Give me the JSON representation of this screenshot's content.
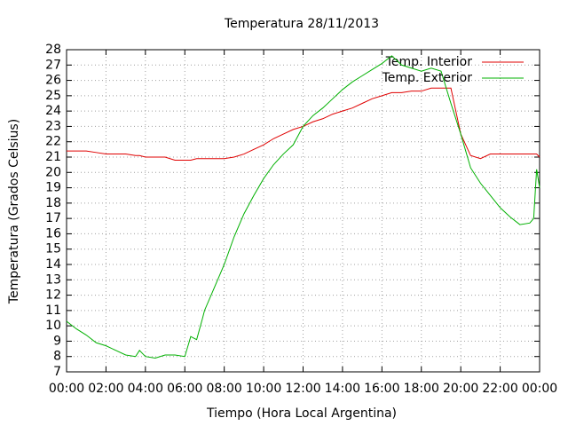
{
  "chart_data": {
    "type": "line",
    "title": "Temperatura 28/11/2013",
    "x_label": "Tiempo (Hora Local Argentina)",
    "y_label": "Temperatura (Grados Celsius)",
    "x": [
      0,
      0.5,
      1,
      1.5,
      2,
      2.5,
      3,
      3.5,
      3.7,
      4,
      4.5,
      5,
      5.5,
      6,
      6.3,
      6.6,
      6.9,
      7,
      7.5,
      8,
      8.5,
      9,
      9.5,
      10,
      10.5,
      11,
      11.5,
      12,
      12.5,
      13,
      13.5,
      14,
      14.5,
      15,
      15.5,
      16,
      16.5,
      17,
      17.5,
      18,
      18.5,
      19,
      19.5,
      20,
      20.5,
      21,
      21.5,
      22,
      22.5,
      23,
      23.5,
      23.7,
      23.85,
      24
    ],
    "series": [
      {
        "name": "Temp. Interior",
        "color": "#e00000",
        "values": [
          21.4,
          21.4,
          21.4,
          21.3,
          21.2,
          21.2,
          21.2,
          21.1,
          21.1,
          21.0,
          21.0,
          21.0,
          20.8,
          20.8,
          20.8,
          20.9,
          20.9,
          20.9,
          20.9,
          20.9,
          21.0,
          21.2,
          21.5,
          21.8,
          22.2,
          22.5,
          22.8,
          23.0,
          23.3,
          23.5,
          23.8,
          24.0,
          24.2,
          24.5,
          24.8,
          25.0,
          25.2,
          25.2,
          25.3,
          25.3,
          25.5,
          25.5,
          25.5,
          22.5,
          21.1,
          20.9,
          21.2,
          21.2,
          21.2,
          21.2,
          21.2,
          21.2,
          21.2,
          21.0
        ]
      },
      {
        "name": "Temp. Exterior",
        "color": "#00b000",
        "values": [
          10.3,
          9.8,
          9.4,
          8.9,
          8.7,
          8.4,
          8.1,
          8.0,
          8.4,
          8.0,
          7.9,
          8.1,
          8.1,
          8.0,
          9.3,
          9.1,
          10.5,
          11.0,
          12.5,
          14.0,
          15.8,
          17.3,
          18.5,
          19.6,
          20.5,
          21.2,
          21.8,
          23.0,
          23.7,
          24.2,
          24.8,
          25.4,
          25.9,
          26.3,
          26.7,
          27.1,
          27.6,
          27.0,
          26.8,
          26.6,
          26.8,
          26.6,
          24.5,
          22.5,
          20.3,
          19.3,
          18.5,
          17.7,
          17.1,
          16.6,
          16.7,
          17.0,
          20.2,
          19.0
        ]
      }
    ],
    "xlim": [
      0,
      24
    ],
    "xticks": [
      {
        "value": 0,
        "label": "00:00"
      },
      {
        "value": 2,
        "label": "02:00"
      },
      {
        "value": 4,
        "label": "04:00"
      },
      {
        "value": 6,
        "label": "06:00"
      },
      {
        "value": 8,
        "label": "08:00"
      },
      {
        "value": 10,
        "label": "10:00"
      },
      {
        "value": 12,
        "label": "12:00"
      },
      {
        "value": 14,
        "label": "14:00"
      },
      {
        "value": 16,
        "label": "16:00"
      },
      {
        "value": 18,
        "label": "18:00"
      },
      {
        "value": 20,
        "label": "20:00"
      },
      {
        "value": 22,
        "label": "22:00"
      },
      {
        "value": 24,
        "label": "00:00"
      }
    ],
    "ylim": [
      7,
      28
    ],
    "yticks": [
      7,
      8,
      9,
      10,
      11,
      12,
      13,
      14,
      15,
      16,
      17,
      18,
      19,
      20,
      21,
      22,
      23,
      24,
      25,
      26,
      27,
      28
    ],
    "grid": true,
    "legend": "top-right"
  }
}
